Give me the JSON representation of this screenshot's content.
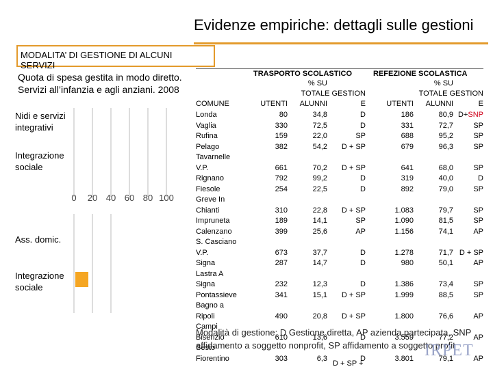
{
  "title": "Evidenze empiriche: dettagli sulle gestioni",
  "modality_box": {
    "line1": "MODALITA’ DI GESTIONE DI ALCUNI",
    "line2": "SERVIZI"
  },
  "subtitle": "Quota di spesa gestita in modo diretto. Servizi all’infanzia e agli anziani. 2008",
  "charts": {
    "panel1": {
      "categories": [
        "Nidi e servizi integrativi",
        "Integrazione sociale"
      ],
      "axis_ticks": [
        "0",
        "20",
        "40",
        "60",
        "80",
        "100"
      ]
    },
    "panel2": {
      "categories": [
        "Ass. domic.",
        "Integrazione sociale"
      ]
    }
  },
  "table": {
    "group1_title": "TRASPORTO SCOLASTICO",
    "group2_title": "REFEZIONE SCOLASTICA",
    "col_comune": "COMUNE",
    "col_utenti": "UTENTI",
    "col_pct_1": "% SU",
    "col_pct_2": "ALUNNI",
    "col_gest_1": "TOTALE GESTION",
    "col_gest_2": "E",
    "rows": [
      {
        "comune": [
          "Londa"
        ],
        "t_utenti": "80",
        "t_pct": "34,8",
        "t_gest": "D",
        "r_utenti": "186",
        "r_pct": "80,9",
        "r_gest_a": "D+",
        "r_gest_b": "SNP"
      },
      {
        "comune": [
          "Vaglia"
        ],
        "t_utenti": "330",
        "t_pct": "72,5",
        "t_gest": "D",
        "r_utenti": "331",
        "r_pct": "72,7",
        "r_gest_a": "SP",
        "r_gest_b": ""
      },
      {
        "comune": [
          "Rufina"
        ],
        "t_utenti": "159",
        "t_pct": "22,0",
        "t_gest": "SP",
        "r_utenti": "688",
        "r_pct": "95,2",
        "r_gest_a": "SP",
        "r_gest_b": ""
      },
      {
        "comune": [
          "Pelago"
        ],
        "t_utenti": "382",
        "t_pct": "54,2",
        "t_gest": "D + SP",
        "r_utenti": "679",
        "r_pct": "96,3",
        "r_gest_a": "SP",
        "r_gest_b": ""
      },
      {
        "comune": [
          "Tavarnelle",
          "V.P."
        ],
        "t_utenti": "661",
        "t_pct": "70,2",
        "t_gest": "D + SP",
        "r_utenti": "641",
        "r_pct": "68,0",
        "r_gest_a": "SP",
        "r_gest_b": ""
      },
      {
        "comune": [
          "Rignano"
        ],
        "t_utenti": "792",
        "t_pct": "99,2",
        "t_gest": "D",
        "r_utenti": "319",
        "r_pct": "40,0",
        "r_gest_a": "D",
        "r_gest_b": ""
      },
      {
        "comune": [
          "Fiesole"
        ],
        "t_utenti": "254",
        "t_pct": "22,5",
        "t_gest": "D",
        "r_utenti": "892",
        "r_pct": "79,0",
        "r_gest_a": "SP",
        "r_gest_b": ""
      },
      {
        "comune": [
          "Greve In",
          "Chianti"
        ],
        "t_utenti": "310",
        "t_pct": "22,8",
        "t_gest": "D + SP",
        "r_utenti": "1.083",
        "r_pct": "79,7",
        "r_gest_a": "SP",
        "r_gest_b": ""
      },
      {
        "comune": [
          "Impruneta"
        ],
        "t_utenti": "189",
        "t_pct": "14,1",
        "t_gest": "SP",
        "r_utenti": "1.090",
        "r_pct": "81,5",
        "r_gest_a": "SP",
        "r_gest_b": ""
      },
      {
        "comune": [
          "Calenzano"
        ],
        "t_utenti": "399",
        "t_pct": "25,6",
        "t_gest": "AP",
        "r_utenti": "1.156",
        "r_pct": "74,1",
        "r_gest_a": "AP",
        "r_gest_b": ""
      },
      {
        "comune": [
          "S. Casciano",
          "V.P."
        ],
        "t_utenti": "673",
        "t_pct": "37,7",
        "t_gest": "D",
        "r_utenti": "1.278",
        "r_pct": "71,7",
        "r_gest_a": "D + SP",
        "r_gest_b": ""
      },
      {
        "comune": [
          "Signa"
        ],
        "t_utenti": "287",
        "t_pct": "14,7",
        "t_gest": "D",
        "r_utenti": "980",
        "r_pct": "50,1",
        "r_gest_a": "AP",
        "r_gest_b": ""
      },
      {
        "comune": [
          "Lastra A",
          "Signa"
        ],
        "t_utenti": "232",
        "t_pct": "12,3",
        "t_gest": "D",
        "r_utenti": "1.386",
        "r_pct": "73,4",
        "r_gest_a": "SP",
        "r_gest_b": ""
      },
      {
        "comune": [
          "Pontassieve"
        ],
        "t_utenti": "341",
        "t_pct": "15,1",
        "t_gest": "D + SP",
        "r_utenti": "1.999",
        "r_pct": "88,5",
        "r_gest_a": "SP",
        "r_gest_b": ""
      },
      {
        "comune": [
          "Bagno a",
          "Ripoli"
        ],
        "t_utenti": "490",
        "t_pct": "20,8",
        "t_gest": "D + SP",
        "r_utenti": "1.800",
        "r_pct": "76,6",
        "r_gest_a": "AP",
        "r_gest_b": ""
      },
      {
        "comune": [
          "Campi",
          "Bisenzio"
        ],
        "t_utenti": "610",
        "t_pct": "13,6",
        "t_gest": "D",
        "r_utenti": "3.559",
        "r_pct": "77,2",
        "r_gest_a": "AP",
        "r_gest_b": ""
      },
      {
        "comune": [
          "Sesto",
          "Fiorentino"
        ],
        "t_utenti": "303",
        "t_pct": "6,3",
        "t_gest": "D",
        "r_utenti": "3.801",
        "r_pct": "79,1",
        "r_gest_a": "AP",
        "r_gest_b": ""
      }
    ],
    "last_row_extra": "D + SP +"
  },
  "footnote": "Gestione diretta, AP azienda partecipata, SNP affidamento a soggetto nonprofit, SP affidamento a soggetto profit",
  "footnote_prefix": "Modalità di gestione: D",
  "logo_text": "IRPET",
  "colors": {
    "accent": "#e39a2b",
    "bar": "#f5a623",
    "red": "#d0021b"
  }
}
